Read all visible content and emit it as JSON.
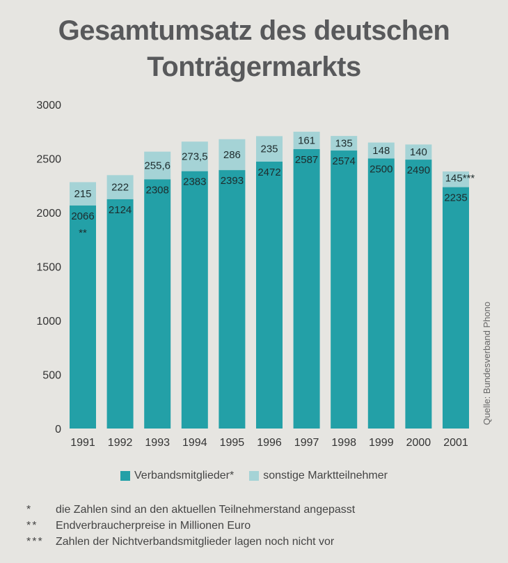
{
  "title_lines": [
    "Gesamtumsatz des deutschen",
    "Tonträgermarkts"
  ],
  "source": "Quelle: Bundesverband Phono",
  "colors": {
    "members": "#23a0a7",
    "others": "#a5d3d6",
    "background": "#e6e5e1"
  },
  "legend": {
    "members_label": "Verbandsmitglieder*",
    "others_label": "sonstige Marktteilnehmer"
  },
  "footnotes": [
    {
      "mark": "*",
      "text": "die Zahlen sind an den aktuellen Teilnehmerstand angepasst"
    },
    {
      "mark": "**",
      "text": "Endverbraucherpreise in Millionen Euro"
    },
    {
      "mark": "***",
      "text": "Zahlen der Nichtverbandsmitglieder lagen noch nicht vor"
    }
  ],
  "chart_data": {
    "type": "bar",
    "stacked": true,
    "categories": [
      "1991",
      "1992",
      "1993",
      "1994",
      "1995",
      "1996",
      "1997",
      "1998",
      "1999",
      "2000",
      "2001"
    ],
    "series": [
      {
        "name": "Verbandsmitglieder*",
        "values": [
          2066,
          2124,
          2308,
          2383,
          2393,
          2472,
          2587,
          2574,
          2500,
          2490,
          2235
        ],
        "labels": [
          "2066",
          "2124",
          "2308",
          "2383",
          "2393",
          "2472",
          "2587",
          "2574",
          "2500",
          "2490",
          "2235"
        ]
      },
      {
        "name": "sonstige Marktteilnehmer",
        "values": [
          215,
          222,
          255.6,
          273.5,
          286,
          235,
          161,
          135,
          148,
          140,
          145
        ],
        "labels": [
          "215",
          "222",
          "255,6",
          "273,5",
          "286",
          "235",
          "161",
          "135",
          "148",
          "140",
          "145***"
        ]
      }
    ],
    "annotations": [
      {
        "category": "1991",
        "text": "**"
      }
    ],
    "yticks": [
      "0",
      "500",
      "1000",
      "1500",
      "2000",
      "2500",
      "3000"
    ],
    "ylim": [
      0,
      3000
    ],
    "grid": false,
    "legend_position": "bottom"
  }
}
